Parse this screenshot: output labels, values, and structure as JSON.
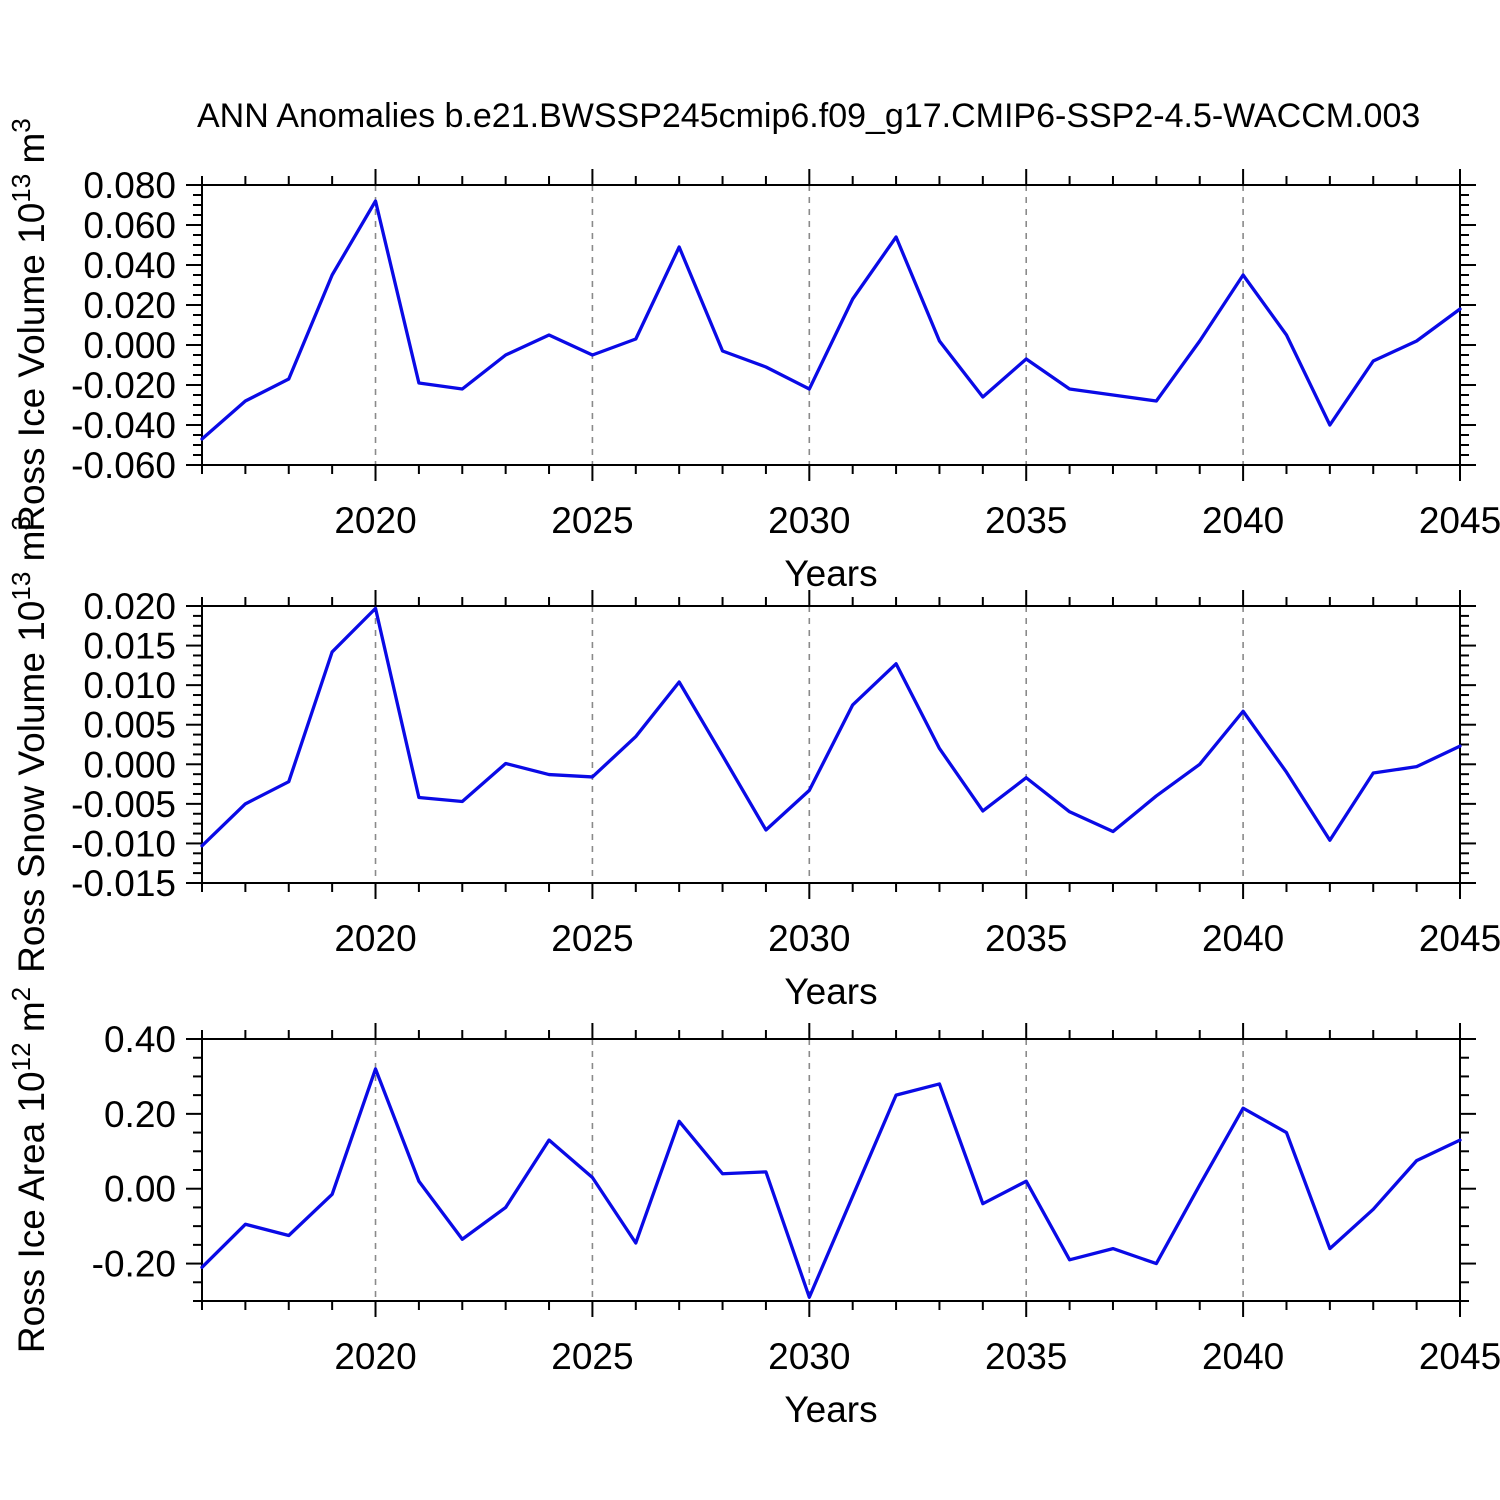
{
  "title": "ANN Anomalies b.e21.BWSSP245cmip6.f09_g17.CMIP6-SSP2-4.5-WACCM.003",
  "colors": {
    "line": "#0a0ae6",
    "gridline": "#8a8a8a",
    "axis": "#000000",
    "text": "#000000",
    "background": "#ffffff"
  },
  "x_axis": {
    "label": "Years",
    "range": [
      2016,
      2045
    ],
    "minor_tick_step_years": 1,
    "major_ticks": [
      2020,
      2025,
      2030,
      2035,
      2040,
      2045
    ],
    "major_tick_labels": [
      "2020",
      "2025",
      "2030",
      "2035",
      "2040",
      "2045"
    ],
    "gridline_years": [
      2020,
      2025,
      2030,
      2035,
      2040
    ]
  },
  "chart_data": [
    {
      "type": "line",
      "name": "ross-ice-volume",
      "ylabel_plain": "Ross Ice Volume 10^13 m^3",
      "ylabel_rich": [
        {
          "text": "Ross Ice Volume 10",
          "sup": false
        },
        {
          "text": "13",
          "sup": true
        },
        {
          "text": " m",
          "sup": false
        },
        {
          "text": "3",
          "sup": true
        }
      ],
      "xlabel": "Years",
      "ylim": [
        -0.06,
        0.08
      ],
      "yminor_step": 0.005,
      "yticks": [
        {
          "value": 0.08,
          "label": "0.080"
        },
        {
          "value": 0.06,
          "label": "0.060"
        },
        {
          "value": 0.04,
          "label": "0.040"
        },
        {
          "value": 0.02,
          "label": "0.020"
        },
        {
          "value": 0.0,
          "label": "0.000"
        },
        {
          "value": -0.02,
          "label": "-0.020"
        },
        {
          "value": -0.04,
          "label": "-0.040"
        },
        {
          "value": -0.06,
          "label": "-0.060"
        }
      ],
      "x": [
        2016,
        2017,
        2018,
        2019,
        2020,
        2021,
        2022,
        2023,
        2024,
        2025,
        2026,
        2027,
        2028,
        2029,
        2030,
        2031,
        2032,
        2033,
        2034,
        2035,
        2036,
        2037,
        2038,
        2039,
        2040,
        2041,
        2042,
        2043,
        2044,
        2045
      ],
      "values": [
        -0.047,
        -0.028,
        -0.017,
        0.035,
        0.072,
        -0.019,
        -0.022,
        -0.005,
        0.005,
        -0.005,
        0.003,
        0.049,
        -0.003,
        -0.011,
        -0.022,
        0.023,
        0.054,
        0.002,
        -0.026,
        -0.007,
        -0.022,
        -0.025,
        -0.028,
        0.002,
        0.035,
        0.005,
        -0.04,
        -0.008,
        0.002,
        0.018
      ]
    },
    {
      "type": "line",
      "name": "ross-snow-volume",
      "ylabel_plain": "Ross Snow Volume 10^13 m^3",
      "ylabel_rich": [
        {
          "text": "Ross Snow Volume 10",
          "sup": false
        },
        {
          "text": "13",
          "sup": true
        },
        {
          "text": " m",
          "sup": false
        },
        {
          "text": "3",
          "sup": true
        }
      ],
      "xlabel": "Years",
      "ylim": [
        -0.015,
        0.02
      ],
      "yminor_step": 0.00125,
      "yticks": [
        {
          "value": 0.02,
          "label": "0.020"
        },
        {
          "value": 0.015,
          "label": "0.015"
        },
        {
          "value": 0.01,
          "label": "0.010"
        },
        {
          "value": 0.005,
          "label": "0.005"
        },
        {
          "value": 0.0,
          "label": "0.000"
        },
        {
          "value": -0.005,
          "label": "-0.005"
        },
        {
          "value": -0.01,
          "label": "-0.010"
        },
        {
          "value": -0.015,
          "label": "-0.015"
        }
      ],
      "x": [
        2016,
        2017,
        2018,
        2019,
        2020,
        2021,
        2022,
        2023,
        2024,
        2025,
        2026,
        2027,
        2028,
        2029,
        2030,
        2031,
        2032,
        2033,
        2034,
        2035,
        2036,
        2037,
        2038,
        2039,
        2040,
        2041,
        2042,
        2043,
        2044,
        2045
      ],
      "values": [
        -0.0103,
        -0.005,
        -0.0022,
        0.0142,
        0.0197,
        -0.0042,
        -0.0047,
        0.0001,
        -0.0013,
        -0.0016,
        0.0035,
        0.0104,
        0.0011,
        -0.0083,
        -0.0033,
        0.0075,
        0.0127,
        0.002,
        -0.0059,
        -0.0017,
        -0.006,
        -0.0085,
        -0.004,
        0.0,
        0.0067,
        -0.001,
        -0.0096,
        -0.0011,
        -0.0003,
        0.0023
      ]
    },
    {
      "type": "line",
      "name": "ross-ice-area",
      "ylabel_plain": "Ross Ice Area 10^12 m^2",
      "ylabel_rich": [
        {
          "text": "Ross Ice Area 10",
          "sup": false
        },
        {
          "text": "12",
          "sup": true
        },
        {
          "text": " m",
          "sup": false
        },
        {
          "text": "2",
          "sup": true
        }
      ],
      "xlabel": "Years",
      "ylim": [
        -0.3,
        0.4
      ],
      "yminor_step": 0.05,
      "yticks": [
        {
          "value": 0.4,
          "label": "0.40"
        },
        {
          "value": 0.2,
          "label": "0.20"
        },
        {
          "value": 0.0,
          "label": "0.00"
        },
        {
          "value": -0.2,
          "label": "-0.20"
        }
      ],
      "x": [
        2016,
        2017,
        2018,
        2019,
        2020,
        2021,
        2022,
        2023,
        2024,
        2025,
        2026,
        2027,
        2028,
        2029,
        2030,
        2031,
        2032,
        2033,
        2034,
        2035,
        2036,
        2037,
        2038,
        2039,
        2040,
        2041,
        2042,
        2043,
        2044,
        2045
      ],
      "values": [
        -0.21,
        -0.095,
        -0.125,
        -0.015,
        0.32,
        0.02,
        -0.135,
        -0.05,
        0.13,
        0.03,
        -0.145,
        0.18,
        0.04,
        0.045,
        -0.29,
        -0.02,
        0.25,
        0.28,
        -0.04,
        0.02,
        -0.19,
        -0.16,
        -0.2,
        0.01,
        0.215,
        0.15,
        -0.16,
        -0.055,
        0.075,
        0.13
      ]
    }
  ]
}
